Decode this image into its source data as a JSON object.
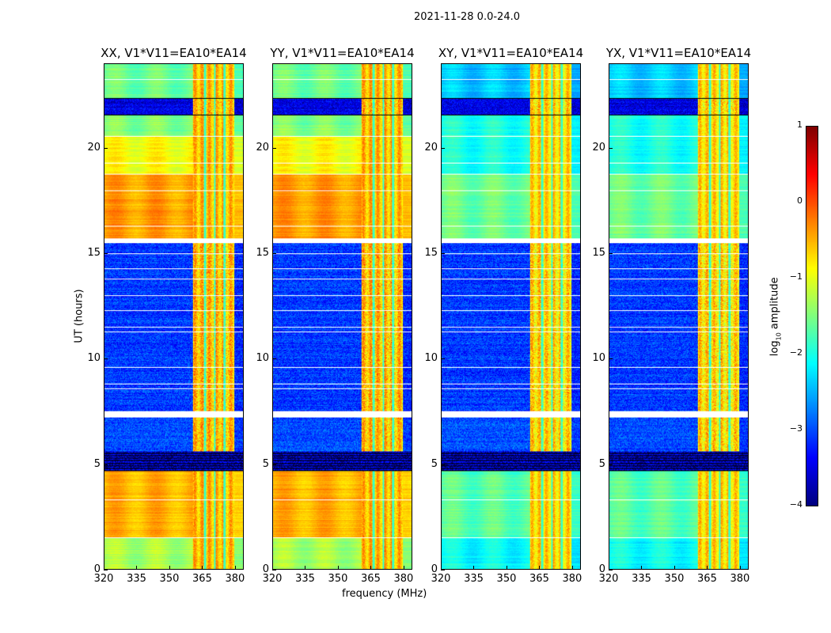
{
  "chart_data": {
    "type": "heatmap",
    "suptitle": "2021-11-28 0.0-24.0",
    "xlabel": "frequency (MHz)",
    "ylabel": "UT (hours)",
    "xlim": [
      320,
      384
    ],
    "ylim": [
      0,
      24
    ],
    "xticks": [
      320,
      335,
      350,
      365,
      380
    ],
    "xtick_labels": [
      "320",
      "335",
      "350",
      "365",
      "380"
    ],
    "yticks": [
      0,
      5,
      10,
      15,
      20
    ],
    "ytick_labels": [
      "0",
      "5",
      "10",
      "15",
      "20"
    ],
    "colorbar": {
      "label": "log10 amplitude",
      "label_main": "log",
      "label_sub": "10",
      "label_rest": " amplitude",
      "range": [
        -4,
        1
      ],
      "ticks": [
        1,
        0,
        -1,
        -2,
        -3,
        -4
      ],
      "tick_labels": [
        "1",
        "0",
        "−1",
        "−2",
        "−3",
        "−4"
      ],
      "colormap": "jet"
    },
    "rfi_band_mhz": [
      361,
      380
    ],
    "panels": [
      {
        "title": "XX, V1*V11=EA10*EA14",
        "type": "parallel"
      },
      {
        "title": "YY, V1*V11=EA10*EA14",
        "type": "parallel"
      },
      {
        "title": "XY, V1*V11=EA10*EA14",
        "type": "cross"
      },
      {
        "title": "YX, V1*V11=EA10*EA14",
        "type": "cross"
      }
    ],
    "time_segments": {
      "parallel": [
        [
          0,
          1.5,
          -1.3
        ],
        [
          1.5,
          4.7,
          -0.5
        ],
        [
          4.7,
          5.6,
          -3.6
        ],
        [
          5.6,
          7.2,
          -3.0
        ],
        [
          7.5,
          15.5,
          -3.1
        ],
        [
          15.7,
          18.8,
          -0.4
        ],
        [
          18.8,
          20.6,
          -0.9
        ],
        [
          20.6,
          21.6,
          -1.5
        ],
        [
          21.6,
          22.4,
          -3.5
        ],
        [
          22.4,
          24,
          -1.6
        ]
      ],
      "cross": [
        [
          0,
          1.5,
          -2.1
        ],
        [
          1.5,
          4.7,
          -1.7
        ],
        [
          4.7,
          5.6,
          -3.6
        ],
        [
          5.6,
          7.2,
          -3.0
        ],
        [
          7.5,
          15.5,
          -3.1
        ],
        [
          15.7,
          18.8,
          -1.6
        ],
        [
          18.8,
          20.6,
          -2.0
        ],
        [
          20.6,
          21.6,
          -2.0
        ],
        [
          21.6,
          22.4,
          -3.5
        ],
        [
          22.4,
          24,
          -2.4
        ]
      ]
    },
    "flagged_hours": [
      1.5,
      3.3,
      4.7,
      7.3,
      7.4,
      8.6,
      8.8,
      9.6,
      11.3,
      11.5,
      12.3,
      13.0,
      13.8,
      14.3,
      15.0,
      15.55,
      15.65,
      16.3,
      18.0,
      18.8,
      19.3,
      20.6,
      21.6,
      22.4,
      23.3
    ]
  }
}
